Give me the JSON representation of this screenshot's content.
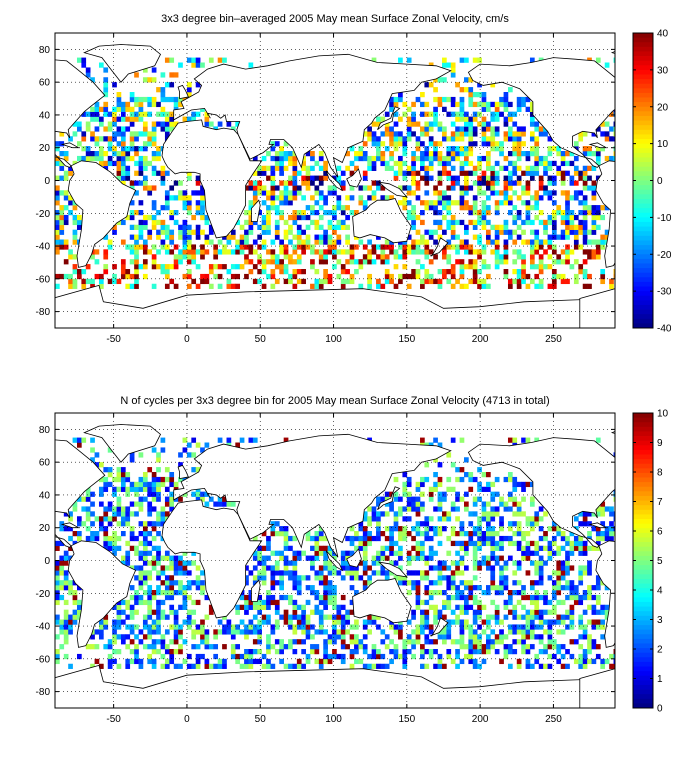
{
  "chart_data": [
    {
      "type": "heatmap",
      "title": "3x3 degree bin–averaged 2005 May mean Surface Zonal Velocity, cm/s",
      "xlabel": "",
      "ylabel": "",
      "xlim": [
        -90,
        292
      ],
      "ylim": [
        -90,
        90
      ],
      "x_ticks": [
        -50,
        0,
        50,
        100,
        150,
        200,
        250
      ],
      "y_ticks": [
        80,
        60,
        40,
        20,
        0,
        -20,
        -40,
        -60,
        -80
      ],
      "bin_size_deg": 3,
      "grid": true,
      "colorbar": {
        "min": -40,
        "max": 40,
        "ticks": [
          40,
          30,
          20,
          10,
          0,
          -10,
          -20,
          -30,
          -40
        ],
        "colormap": "jet"
      }
    },
    {
      "type": "heatmap",
      "title": "N of cycles per 3x3 degree bin for 2005 May mean Surface Zonal Velocity (4713 in total)",
      "xlabel": "",
      "ylabel": "",
      "xlim": [
        -90,
        292
      ],
      "ylim": [
        -90,
        90
      ],
      "x_ticks": [
        -50,
        0,
        50,
        100,
        150,
        200,
        250
      ],
      "y_ticks": [
        80,
        60,
        40,
        20,
        0,
        -20,
        -40,
        -60,
        -80
      ],
      "bin_size_deg": 3,
      "grid": true,
      "total_cycles": 4713,
      "colorbar": {
        "min": 0,
        "max": 10,
        "ticks": [
          10,
          9,
          8,
          7,
          6,
          5,
          4,
          3,
          2,
          1,
          0
        ],
        "colormap": "jet"
      }
    }
  ]
}
